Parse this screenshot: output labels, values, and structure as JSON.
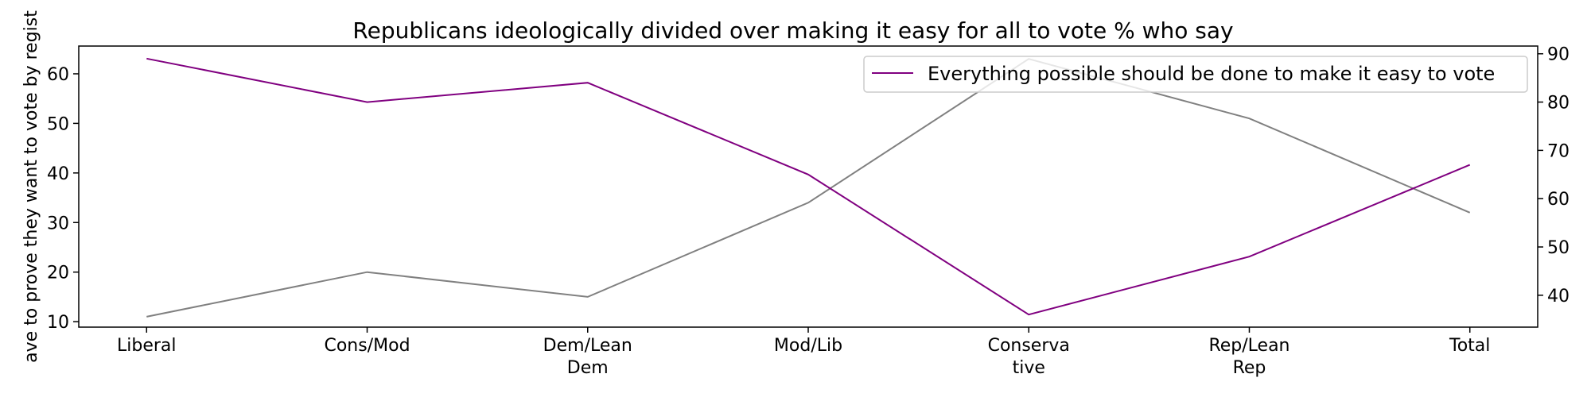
{
  "chart_data": {
    "type": "line",
    "title": "Republicans ideologically divided over making it easy for all to vote % who say",
    "categories": [
      "Liberal",
      "Cons/Mod",
      "Dem/Lean Dem",
      "Mod/Lib",
      "Conservative",
      "Rep/Lean Rep",
      "Total"
    ],
    "category_labels": [
      [
        "Liberal"
      ],
      [
        "Cons/Mod"
      ],
      [
        "Dem/Lean",
        "Dem"
      ],
      [
        "Mod/Lib"
      ],
      [
        "Conserva",
        "tive"
      ],
      [
        "Rep/Lean",
        "Rep"
      ],
      [
        "Total"
      ]
    ],
    "left_axis": {
      "label": "ave to prove they want to vote by regist",
      "ylim": [
        8.9,
        65.6
      ],
      "ticks": [
        10,
        20,
        30,
        40,
        50,
        60
      ]
    },
    "right_axis": {
      "ylim": [
        33.4,
        91.6
      ],
      "ticks": [
        40,
        50,
        60,
        70,
        80,
        90
      ]
    },
    "series": [
      {
        "name": "",
        "axis": "left",
        "color": "#808080",
        "values": [
          11,
          20,
          15,
          34,
          63,
          51,
          32
        ]
      },
      {
        "name": "Everything possible should be done to make it easy to vote",
        "axis": "right",
        "color": "#800080",
        "values": [
          89,
          80,
          84,
          65,
          36,
          48,
          67
        ]
      }
    ],
    "legend": {
      "placement": "top-right"
    },
    "grid": false
  }
}
